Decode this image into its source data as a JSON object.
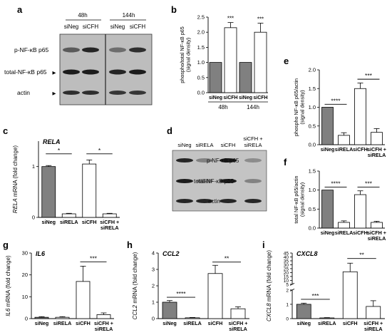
{
  "panel_letters": {
    "a": "a",
    "b": "b",
    "c": "c",
    "d": "d",
    "e": "e",
    "f": "f",
    "g": "g",
    "h": "h",
    "i": "i"
  },
  "blot_a": {
    "time_labels": [
      "48h",
      "144h"
    ],
    "lane_labels": [
      "siNeg",
      "siCFH",
      "siNeg",
      "siCFH"
    ],
    "row_labels": [
      "p-NF-κB p65",
      "total-NF-κB p65",
      "actin"
    ],
    "arrow": "▶"
  },
  "blot_d": {
    "lane_labels": [
      "siNeg",
      "siRELA",
      "siCFH",
      "siCFH +\nsiRELA"
    ],
    "row_labels": [
      "p-NF-κB p65",
      "total-NF-κB p65",
      "actin"
    ]
  },
  "chart_data": [
    {
      "id": "b",
      "type": "bar",
      "ylabel": "phospho/total NF-κB p65\n(signal density)",
      "ylim": [
        0,
        2.5
      ],
      "ticks": [
        "0.0",
        "0.5",
        "1.0",
        "1.5",
        "2.0",
        "2.5"
      ],
      "categories": [
        "siNeg",
        "siCFH",
        "siNeg",
        "siCFH"
      ],
      "values": [
        1.0,
        2.15,
        1.0,
        2.0
      ],
      "errors": [
        0,
        0.17,
        0,
        0.3
      ],
      "fills": [
        "#808080",
        "#ffffff",
        "#808080",
        "#ffffff"
      ],
      "groups": [
        {
          "label": "48h",
          "span": [
            0,
            1
          ]
        },
        {
          "label": "144h",
          "span": [
            2,
            3
          ]
        }
      ],
      "stars": [
        null,
        "***",
        null,
        "***"
      ],
      "brackets": []
    },
    {
      "id": "e",
      "type": "bar",
      "ylabel": "phospho NF-κB p65/actin\n(signal density)",
      "ylim": [
        0,
        2.0
      ],
      "ticks": [
        "0.0",
        "0.5",
        "1.0",
        "1.5",
        "2.0"
      ],
      "categories": [
        "siNeg",
        "siRELA",
        "siCFH",
        "siCFH +\nsiRELA"
      ],
      "values": [
        1.0,
        0.25,
        1.5,
        0.33
      ],
      "errors": [
        0,
        0.07,
        0.15,
        0.1
      ],
      "fills": [
        "#808080",
        "#ffffff",
        "#ffffff",
        "#ffffff"
      ],
      "brackets": [
        {
          "from": 0,
          "to": 1,
          "label": "****",
          "y": 1.08
        },
        {
          "from": 2,
          "to": 3,
          "label": "***",
          "y": 1.75
        }
      ]
    },
    {
      "id": "c",
      "type": "bar",
      "gene": "RELA",
      "ylabel": "RELA mRNA (fold change)",
      "ylim": [
        0,
        1.5
      ],
      "ticks": [
        "0",
        "1"
      ],
      "categories": [
        "siNeg",
        "siRELA",
        "siCFH",
        "siCFH +\nsiRELA"
      ],
      "values": [
        1.0,
        0.07,
        1.05,
        0.07
      ],
      "errors": [
        0.02,
        0.01,
        0.08,
        0.01
      ],
      "fills": [
        "#808080",
        "#ffffff",
        "#ffffff",
        "#ffffff"
      ],
      "brackets": [
        {
          "from": 0,
          "to": 1,
          "label": "*",
          "y": 1.25
        },
        {
          "from": 2,
          "to": 3,
          "label": "*",
          "y": 1.25
        }
      ]
    },
    {
      "id": "f",
      "type": "bar",
      "ylabel": "total NF-κB p65/actin\n(signal density)",
      "ylim": [
        0,
        1.5
      ],
      "ticks": [
        "0.0",
        "0.5",
        "1.0",
        "1.5"
      ],
      "categories": [
        "siNeg",
        "siRELA",
        "siCFH",
        "siCFH +\nsiRELA"
      ],
      "values": [
        1.0,
        0.15,
        0.88,
        0.15
      ],
      "errors": [
        0,
        0.04,
        0.1,
        0.03
      ],
      "fills": [
        "#808080",
        "#ffffff",
        "#ffffff",
        "#ffffff"
      ],
      "brackets": [
        {
          "from": 0,
          "to": 1,
          "label": "****",
          "y": 1.08
        },
        {
          "from": 2,
          "to": 3,
          "label": "***",
          "y": 1.08
        }
      ]
    },
    {
      "id": "g",
      "type": "bar",
      "gene": "IL6",
      "ylabel": "IL6 mRNA (fold change)",
      "ylim": [
        0,
        30
      ],
      "ticks": [
        "0",
        "10",
        "20",
        "30"
      ],
      "categories": [
        "siNeg",
        "siRELA",
        "siCFH",
        "siCFH +\nsiRELA"
      ],
      "values": [
        0.6,
        0.6,
        17,
        1.8
      ],
      "errors": [
        0.3,
        0.3,
        7,
        0.8
      ],
      "fills": [
        "#808080",
        "#ffffff",
        "#ffffff",
        "#ffffff"
      ],
      "brackets": [
        {
          "from": 2,
          "to": 3,
          "label": "***",
          "y": 26
        }
      ]
    },
    {
      "id": "h",
      "type": "bar",
      "gene": "CCL2",
      "ylabel": "CCL2 mRNA (fold change)",
      "ylim": [
        0,
        4
      ],
      "ticks": [
        "0",
        "1",
        "2",
        "3",
        "4"
      ],
      "categories": [
        "siNeg",
        "siRELA",
        "siCFH",
        "siCFH +\nsiRELA"
      ],
      "values": [
        1.0,
        0.05,
        2.75,
        0.6
      ],
      "errors": [
        0.1,
        0.02,
        0.5,
        0.12
      ],
      "fills": [
        "#808080",
        "#ffffff",
        "#ffffff",
        "#ffffff"
      ],
      "brackets": [
        {
          "from": 0,
          "to": 1,
          "label": "****",
          "y": 1.3
        },
        {
          "from": 2,
          "to": 3,
          "label": "**",
          "y": 3.45
        }
      ]
    },
    {
      "id": "i",
      "type": "bar",
      "gene": "CXCL8",
      "ylabel": "CXCL8 mRNA (fold change)",
      "axis_break": true,
      "ylim_low": [
        0,
        2
      ],
      "ticks_low": [
        "0",
        "1",
        "2"
      ],
      "ylim_high": [
        5,
        45
      ],
      "ticks_high": [
        "5",
        "10",
        "15",
        "20",
        "25",
        "30",
        "35",
        "40",
        "45"
      ],
      "categories": [
        "siNeg",
        "siRELA",
        "siCFH",
        "siCFH +\nsiRELA"
      ],
      "values": [
        1.0,
        0.05,
        21,
        0.85
      ],
      "errors": [
        0.08,
        0.02,
        11,
        0.4
      ],
      "fills": [
        "#808080",
        "#ffffff",
        "#ffffff",
        "#ffffff"
      ],
      "brackets": [
        {
          "from": 0,
          "to": 1,
          "label": "***",
          "y": 1.35
        },
        {
          "from": 2,
          "to": 3,
          "label": "**",
          "y": 38
        }
      ]
    }
  ]
}
